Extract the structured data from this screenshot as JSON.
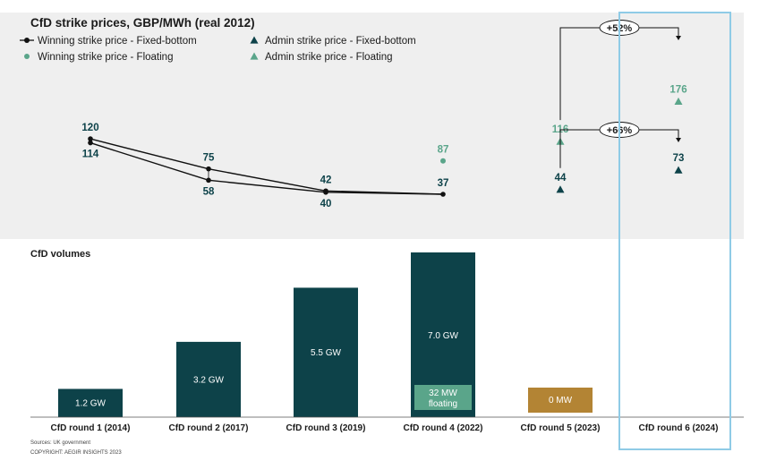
{
  "colors": {
    "dark": "#0d4249",
    "floating": "#5aa58a",
    "zero_bar": "#b38434",
    "highlight": "#8fcbe6",
    "panel": "#efefef"
  },
  "chart_data": [
    {
      "type": "line",
      "title": "CfD strike prices, GBP/MWh (real 2012)",
      "legend_position": "top-left",
      "categories": [
        "CfD round 1 (2014)",
        "CfD round 2 (2017)",
        "CfD round 3 (2019)",
        "CfD round 4 (2022)",
        "CfD round 5 (2023)",
        "CfD round 6 (2024)"
      ],
      "ylim": [
        0,
        190
      ],
      "series": [
        {
          "name": "Winning strike price - Fixed-bottom",
          "marker": "circle",
          "values": [
            120,
            75,
            42,
            37,
            null,
            null
          ],
          "labels": [
            "120",
            "75",
            "42",
            "37",
            "",
            ""
          ]
        },
        {
          "name": "Winning strike price - Fixed-bottom",
          "marker": "circle",
          "values": [
            114,
            58,
            40,
            null,
            null,
            null
          ],
          "labels": [
            "114",
            "58",
            "40",
            "",
            "",
            ""
          ]
        },
        {
          "name": "Winning strike price - Floating",
          "marker": "circle",
          "values": [
            null,
            null,
            null,
            87,
            null,
            null
          ],
          "labels": [
            "",
            "",
            "",
            "87",
            "",
            ""
          ]
        },
        {
          "name": "Admin strike price - Fixed-bottom",
          "marker": "triangle",
          "values": [
            null,
            null,
            null,
            null,
            44,
            73
          ],
          "labels": [
            "",
            "",
            "",
            "",
            "44",
            "73"
          ]
        },
        {
          "name": "Admin strike price - Floating",
          "marker": "triangle",
          "values": [
            null,
            null,
            null,
            null,
            116,
            176
          ],
          "labels": [
            "",
            "",
            "",
            "",
            "116",
            "176"
          ]
        }
      ],
      "annotations": [
        {
          "text": "+52%",
          "from": "CfD round 5 (2023)",
          "to": "CfD round 6 (2024)",
          "series": "Admin strike price - Floating"
        },
        {
          "text": "+66%",
          "from": "CfD round 5 (2023)",
          "to": "CfD round 6 (2024)",
          "series": "Admin strike price - Fixed-bottom"
        }
      ]
    },
    {
      "type": "bar",
      "title": "CfD volumes",
      "categories": [
        "CfD round 1 (2014)",
        "CfD round 2 (2017)",
        "CfD round 3 (2019)",
        "CfD round 4 (2022)",
        "CfD round 5 (2023)",
        "CfD round 6 (2024)"
      ],
      "unit": "GW",
      "values": [
        1.2,
        3.2,
        5.5,
        7.0,
        0,
        null
      ],
      "labels": [
        "1.2 GW",
        "3.2 GW",
        "5.5 GW",
        "7.0 GW",
        "0 MW",
        ""
      ],
      "floating_label": "32 MW\nfloating",
      "ylim": [
        0,
        7.5
      ]
    }
  ],
  "footer": {
    "sources": "Sources: UK government",
    "copyright": "COPYRIGHT: AEGIR INSIGHTS 2023"
  }
}
